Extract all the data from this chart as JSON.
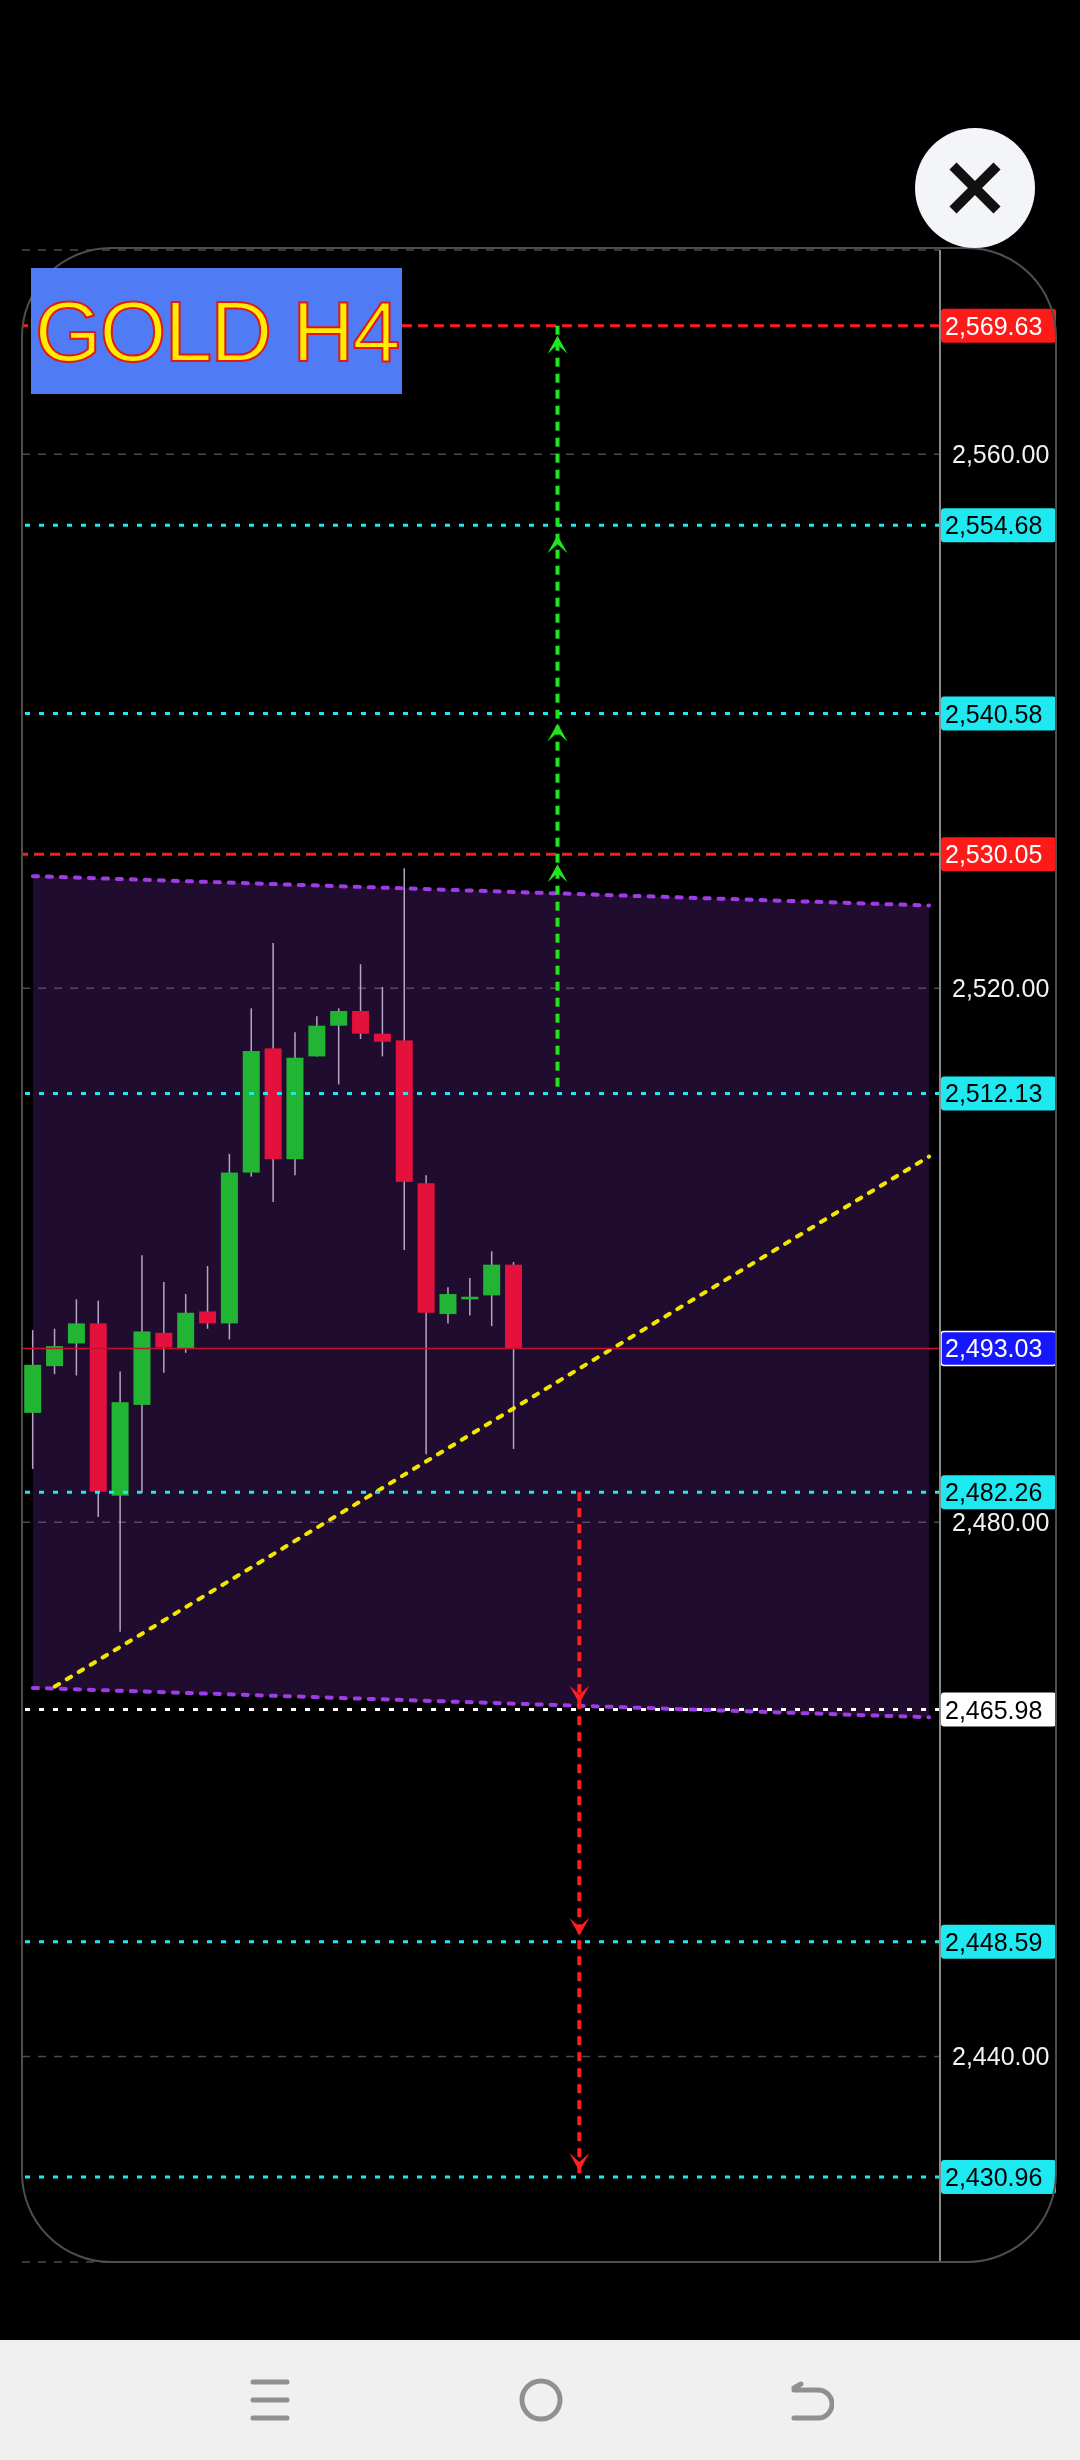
{
  "chart_data": {
    "type": "candlestick",
    "title": "GOLD H4",
    "categories": [
      null,
      null,
      null,
      null,
      null,
      null,
      null,
      null,
      null,
      null,
      null,
      null,
      null,
      null,
      null,
      null,
      null,
      null,
      null,
      null,
      null,
      null,
      null,
      null,
      null,
      null,
      null,
      null,
      null,
      null,
      null,
      null,
      null,
      null,
      null,
      null,
      null,
      null,
      null,
      null,
      null,
      null
    ],
    "ohlc": [
      [
        2488.2,
        2494.4,
        2484.0,
        2491.8
      ],
      [
        2491.7,
        2494.5,
        2491.1,
        2493.2
      ],
      [
        2493.4,
        2496.7,
        2491.0,
        2494.9
      ],
      [
        2494.9,
        2496.6,
        2480.4,
        2482.3
      ],
      [
        2482.0,
        2491.3,
        2471.8,
        2489.0
      ],
      [
        2488.8,
        2500.0,
        2482.2,
        2494.3
      ],
      [
        2494.2,
        2498.0,
        2491.2,
        2493.1
      ],
      [
        2493.0,
        2497.1,
        2492.7,
        2495.7
      ],
      [
        2495.8,
        2499.2,
        2494.5,
        2494.9
      ],
      [
        2494.9,
        2507.6,
        2493.7,
        2506.2
      ],
      [
        2506.2,
        2518.5,
        2505.9,
        2515.3
      ],
      [
        2515.5,
        2523.4,
        2504.0,
        2507.2
      ],
      [
        2507.2,
        2516.7,
        2506.0,
        2514.8
      ],
      [
        2514.9,
        2517.9,
        2514.9,
        2517.2
      ],
      [
        2517.2,
        2518.5,
        2512.8,
        2518.3
      ],
      [
        2518.3,
        2521.8,
        2516.2,
        2516.6
      ],
      [
        2516.6,
        2520.1,
        2514.9,
        2516.0
      ],
      [
        2516.1,
        2529.0,
        2500.4,
        2505.5
      ],
      [
        2505.4,
        2506.0,
        2485.1,
        2495.7
      ],
      [
        2495.6,
        2497.6,
        2494.9,
        2497.1
      ],
      [
        2496.7,
        2498.3,
        2495.5,
        2496.9
      ],
      [
        2497.0,
        2500.3,
        2494.7,
        2499.3
      ],
      [
        2499.3,
        2499.5,
        2485.5,
        2493.03
      ],
      null,
      null,
      null,
      null,
      null,
      null,
      null,
      null,
      null,
      null,
      null,
      null,
      null,
      null,
      null,
      null,
      null,
      null,
      null
    ],
    "colors": [
      "#22b534",
      "#22b534",
      "#22b534",
      "#e3113b",
      "#22b534",
      "#22b534",
      "#e3113b",
      "#22b534",
      "#e3113b",
      "#22b534",
      "#22b534",
      "#e3113b",
      "#22b534",
      "#22b534",
      "#22b534",
      "#e3113b",
      "#e3113b",
      "#e3113b",
      "#e3113b",
      "#22b534",
      "#22b534",
      "#22b534",
      "#e3113b",
      null,
      null,
      null,
      null,
      null,
      null,
      null,
      null,
      null,
      null,
      null,
      null,
      null,
      null,
      null,
      null,
      null,
      null,
      null
    ],
    "series": [
      {
        "type": "line",
        "color": "#a03ce6",
        "line_style": "dotted",
        "values": [
          2528.4,
          null,
          null,
          null,
          null,
          null,
          null,
          null,
          null,
          null,
          null,
          null,
          null,
          null,
          null,
          null,
          null,
          null,
          null,
          null,
          null,
          null,
          null,
          null,
          null,
          null,
          null,
          null,
          null,
          null,
          null,
          null,
          null,
          null,
          null,
          null,
          null,
          null,
          null,
          null,
          null,
          2526.2
        ],
        "lower": [
          2467.6,
          null,
          null,
          null,
          null,
          null,
          null,
          null,
          null,
          null,
          null,
          null,
          null,
          null,
          null,
          null,
          null,
          null,
          null,
          null,
          null,
          null,
          null,
          null,
          null,
          null,
          null,
          null,
          null,
          null,
          null,
          null,
          null,
          null,
          null,
          null,
          null,
          null,
          null,
          null,
          null,
          2465.4
        ],
        "upper": [
          2528.4,
          null,
          null,
          null,
          null,
          null,
          null,
          null,
          null,
          null,
          null,
          null,
          null,
          null,
          null,
          null,
          null,
          null,
          null,
          null,
          null,
          null,
          null,
          null,
          null,
          null,
          null,
          null,
          null,
          null,
          null,
          null,
          null,
          null,
          null,
          null,
          null,
          null,
          null,
          null,
          null,
          2526.2
        ]
      },
      {
        "type": "line",
        "color": "#a03ce6",
        "line_style": "dotted",
        "values": [
          2467.6,
          null,
          null,
          null,
          null,
          null,
          null,
          null,
          null,
          null,
          null,
          null,
          null,
          null,
          null,
          null,
          null,
          null,
          null,
          null,
          null,
          null,
          null,
          null,
          null,
          null,
          null,
          null,
          null,
          null,
          null,
          null,
          null,
          null,
          null,
          null,
          null,
          null,
          null,
          null,
          null,
          2465.4
        ]
      },
      {
        "type": "line",
        "color": "#f5e600",
        "line_style": "dotted",
        "values": [
          null,
          2467.7,
          null,
          null,
          null,
          null,
          null,
          null,
          null,
          null,
          null,
          null,
          null,
          null,
          null,
          null,
          null,
          null,
          null,
          null,
          null,
          null,
          null,
          null,
          null,
          null,
          null,
          null,
          null,
          null,
          null,
          null,
          null,
          null,
          null,
          null,
          null,
          null,
          null,
          null,
          null,
          2507.4
        ]
      }
    ],
    "ylim": [
      2424.6,
      2575.3
    ],
    "yticks": [
      {
        "value": 2440,
        "label": "2,440.00"
      },
      {
        "value": 2480,
        "label": "2,480.00"
      },
      {
        "value": 2520,
        "label": "2,520.00"
      },
      {
        "value": 2560,
        "label": "2,560.00"
      }
    ],
    "grid": "y",
    "tick_labels": "y",
    "ref_lines": [
      {
        "axis": "y",
        "value": 2569.63,
        "label": "2,569.63",
        "color": "#ff1a1a",
        "line_style": "dashed"
      },
      {
        "axis": "y",
        "value": 2554.68,
        "label": "2,554.68",
        "color": "#1ee8f0",
        "line_style": "dotted"
      },
      {
        "axis": "y",
        "value": 2540.58,
        "label": "2,540.58",
        "color": "#1ee8f0",
        "line_style": "dotted"
      },
      {
        "axis": "y",
        "value": 2530.05,
        "label": "2,530.05",
        "color": "#ff1a1a",
        "line_style": "dashed"
      },
      {
        "axis": "y",
        "value": 2512.13,
        "label": "2,512.13",
        "color": "#1ee8f0",
        "line_style": "dotted"
      },
      {
        "axis": "y",
        "value": 2493.03,
        "label": "2,493.03",
        "color": "#c8102e",
        "line_style": "solid"
      },
      {
        "axis": "y",
        "value": 2482.26,
        "label": "2,482.26",
        "color": "#1ee8f0",
        "line_style": "dotted"
      },
      {
        "axis": "y",
        "value": 2465.98,
        "label": "2,465.98",
        "color": "#ffffff",
        "line_style": "dotted"
      },
      {
        "axis": "y",
        "value": 2448.59,
        "label": "2,448.59",
        "color": "#1ee8f0",
        "line_style": "dotted"
      },
      {
        "axis": "y",
        "value": 2430.96,
        "label": "2,430.96",
        "color": "#1ee8f0",
        "line_style": "dotted"
      }
    ]
  }
}
